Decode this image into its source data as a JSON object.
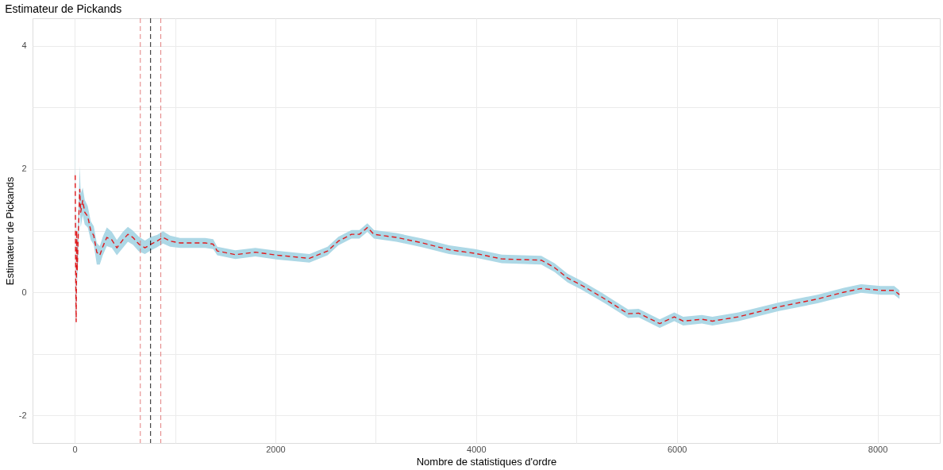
{
  "chart_data": {
    "type": "line",
    "title": "Estimateur de Pickands",
    "xlabel": "Nombre de statistiques d'ordre",
    "ylabel": "Estimateur de Pickands",
    "x": [
      5,
      10,
      15,
      20,
      25,
      35,
      50,
      60,
      80,
      100,
      130,
      160,
      190,
      220,
      250,
      280,
      320,
      370,
      420,
      480,
      530,
      580,
      640,
      700,
      760,
      820,
      880,
      950,
      1050,
      1200,
      1300,
      1380,
      1420,
      1600,
      1800,
      2024,
      2339,
      2520,
      2627,
      2758,
      2837,
      2916,
      2982,
      3205,
      3465,
      3730,
      3992,
      4255,
      4649,
      4780,
      4911,
      5042,
      5252,
      5514,
      5619,
      5829,
      5974,
      6063,
      6249,
      6354,
      6614,
      7008,
      7402,
      7665,
      7835,
      8031,
      8165,
      8218
    ],
    "series": [
      {
        "color": "#e0191c",
        "line_style": "dashed",
        "values": [
          1.9,
          0.3,
          -0.48,
          1.0,
          0.35,
          0.9,
          1.67,
          1.3,
          1.49,
          1.3,
          1.23,
          1.0,
          0.92,
          0.65,
          0.6,
          0.74,
          0.89,
          0.85,
          0.72,
          0.85,
          0.94,
          0.89,
          0.78,
          0.72,
          0.78,
          0.83,
          0.89,
          0.83,
          0.8,
          0.8,
          0.8,
          0.78,
          0.67,
          0.61,
          0.65,
          0.6,
          0.55,
          0.67,
          0.83,
          0.94,
          0.94,
          1.05,
          0.94,
          0.89,
          0.8,
          0.69,
          0.63,
          0.54,
          0.52,
          0.4,
          0.23,
          0.12,
          -0.08,
          -0.35,
          -0.34,
          -0.51,
          -0.4,
          -0.47,
          -0.44,
          -0.47,
          -0.4,
          -0.24,
          -0.11,
          0.0,
          0.06,
          0.03,
          0.03,
          -0.04
        ],
        "lower": [
          1.6,
          0.0,
          -0.5,
          0.7,
          0.1,
          0.6,
          1.4,
          1.05,
          1.25,
          1.1,
          1.05,
          0.85,
          0.77,
          0.45,
          0.45,
          0.6,
          0.75,
          0.72,
          0.6,
          0.72,
          0.82,
          0.77,
          0.66,
          0.62,
          0.68,
          0.73,
          0.79,
          0.74,
          0.72,
          0.72,
          0.72,
          0.7,
          0.6,
          0.54,
          0.58,
          0.53,
          0.48,
          0.6,
          0.76,
          0.87,
          0.87,
          0.98,
          0.87,
          0.82,
          0.73,
          0.62,
          0.56,
          0.47,
          0.45,
          0.33,
          0.16,
          0.05,
          -0.15,
          -0.42,
          -0.41,
          -0.58,
          -0.47,
          -0.54,
          -0.51,
          -0.54,
          -0.47,
          -0.31,
          -0.18,
          -0.07,
          -0.01,
          -0.04,
          -0.04,
          -0.11
        ],
        "upper": [
          3.2,
          0.6,
          0.0,
          1.3,
          0.7,
          1.2,
          2.05,
          1.6,
          1.7,
          1.5,
          1.4,
          1.15,
          1.07,
          0.8,
          0.75,
          0.9,
          1.05,
          0.98,
          0.85,
          0.98,
          1.06,
          1.0,
          0.9,
          0.84,
          0.9,
          0.93,
          0.99,
          0.92,
          0.88,
          0.88,
          0.88,
          0.86,
          0.74,
          0.68,
          0.72,
          0.67,
          0.62,
          0.74,
          0.9,
          1.01,
          1.01,
          1.12,
          1.01,
          0.96,
          0.87,
          0.76,
          0.7,
          0.61,
          0.59,
          0.47,
          0.3,
          0.19,
          -0.01,
          -0.28,
          -0.27,
          -0.44,
          -0.33,
          -0.4,
          -0.37,
          -0.4,
          -0.33,
          -0.17,
          -0.04,
          0.07,
          0.13,
          0.1,
          0.1,
          0.03
        ]
      }
    ],
    "ref_lines": [
      {
        "axis": "x",
        "value": 654,
        "color": "#e07070",
        "line_style": "dashed"
      },
      {
        "axis": "x",
        "value": 756,
        "color": "#000000",
        "line_style": "dashed"
      },
      {
        "axis": "x",
        "value": 858,
        "color": "#e07070",
        "line_style": "dashed"
      }
    ],
    "xlim": [
      -420,
      8620
    ],
    "ylim": [
      -2.45,
      4.45
    ],
    "xticks": [
      0,
      {
        "value": 1000,
        "label": null
      },
      2000,
      {
        "value": 3000,
        "label": null
      },
      4000,
      {
        "value": 5000,
        "label": null
      },
      6000,
      {
        "value": 7000,
        "label": null
      },
      8000
    ],
    "yticks": [
      -2,
      {
        "value": -1,
        "label": null
      },
      0,
      {
        "value": 1,
        "label": null
      },
      2,
      {
        "value": 3,
        "label": null
      },
      4
    ],
    "grid": true,
    "marker": "none"
  }
}
